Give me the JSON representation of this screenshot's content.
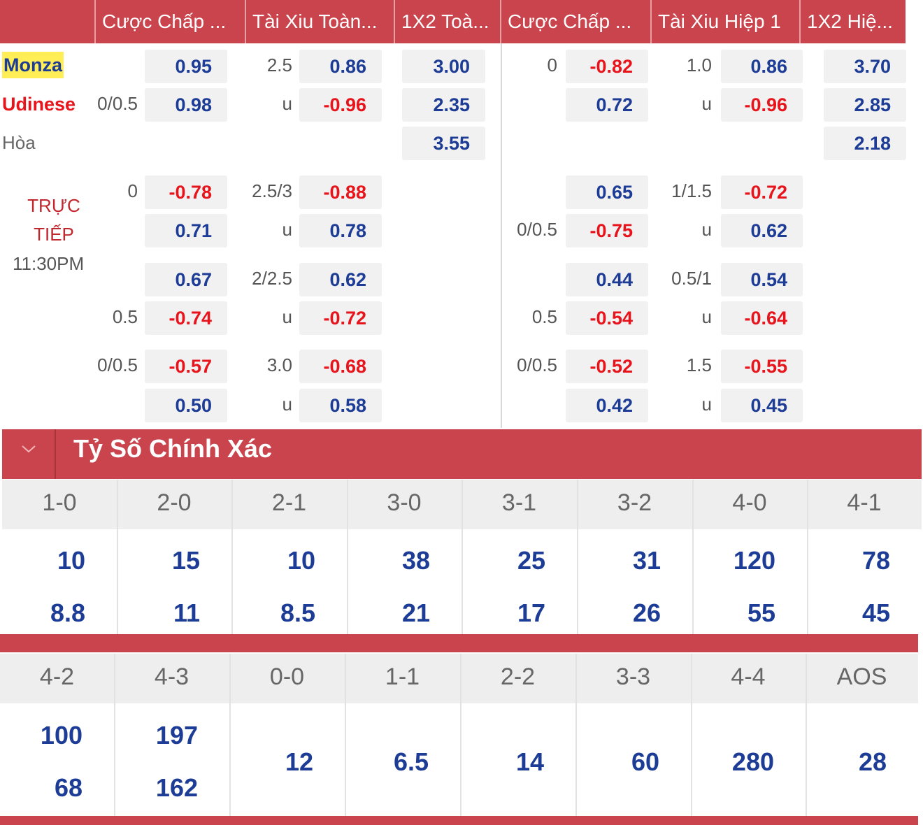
{
  "header": {
    "columns": [
      "Cược Chấp ...",
      "Tài Xiu Toàn...",
      "1X2 Toà...",
      "Cược Chấp ...",
      "Tài Xiu Hiệp 1",
      "1X2 Hiệ..."
    ]
  },
  "match": {
    "home": "Monza",
    "away": "Udinese",
    "draw": "Hòa",
    "status": "TRỰC TIẾP",
    "time": "11:30PM"
  },
  "rows": [
    {
      "fh": "0.95",
      "ou_line": "2.5",
      "ou": "0.86",
      "x12": "3.00",
      "h1_line": "0",
      "h1": "-0.82",
      "h1ou_line": "1.0",
      "h1ou": "0.86",
      "h1x12": "3.70"
    },
    {
      "fh_line": "0/0.5",
      "fh": "0.98",
      "ou_line": "u",
      "ou": "-0.96",
      "x12": "2.35",
      "h1": "0.72",
      "h1ou_line": "u",
      "h1ou": "-0.96",
      "h1x12": "2.85"
    },
    {
      "x12": "3.55",
      "h1x12": "2.18"
    },
    {
      "fh_line": "0",
      "fh": "-0.78",
      "ou_line": "2.5/3",
      "ou": "-0.88",
      "h1": "0.65",
      "h1ou_line": "1/1.5",
      "h1ou": "-0.72"
    },
    {
      "fh": "0.71",
      "ou_line": "u",
      "ou": "0.78",
      "h1_line": "0/0.5",
      "h1": "-0.75",
      "h1ou_line": "u",
      "h1ou": "0.62"
    },
    {
      "fh": "0.67",
      "ou_line": "2/2.5",
      "ou": "0.62",
      "h1": "0.44",
      "h1ou_line": "0.5/1",
      "h1ou": "0.54"
    },
    {
      "fh_line": "0.5",
      "fh": "-0.74",
      "ou_line": "u",
      "ou": "-0.72",
      "h1_line": "0.5",
      "h1": "-0.54",
      "h1ou_line": "u",
      "h1ou": "-0.64"
    },
    {
      "fh_line": "0/0.5",
      "fh": "-0.57",
      "ou_line": "3.0",
      "ou": "-0.68",
      "h1_line": "0/0.5",
      "h1": "-0.52",
      "h1ou_line": "1.5",
      "h1ou": "-0.55"
    },
    {
      "fh": "0.50",
      "ou_line": "u",
      "ou": "0.58",
      "h1": "0.42",
      "h1ou_line": "u",
      "h1ou": "0.45"
    }
  ],
  "section": {
    "title": "Tỷ Số Chính Xác"
  },
  "scores": [
    [
      {
        "score": "1-0",
        "odds": [
          "10",
          "8.8"
        ]
      },
      {
        "score": "2-0",
        "odds": [
          "15",
          "11"
        ]
      },
      {
        "score": "2-1",
        "odds": [
          "10",
          "8.5"
        ]
      },
      {
        "score": "3-0",
        "odds": [
          "38",
          "21"
        ]
      },
      {
        "score": "3-1",
        "odds": [
          "25",
          "17"
        ]
      },
      {
        "score": "3-2",
        "odds": [
          "31",
          "26"
        ]
      },
      {
        "score": "4-0",
        "odds": [
          "120",
          "55"
        ]
      },
      {
        "score": "4-1",
        "odds": [
          "78",
          "45"
        ]
      }
    ],
    [
      {
        "score": "4-2",
        "odds": [
          "100",
          "68"
        ]
      },
      {
        "score": "4-3",
        "odds": [
          "197",
          "162"
        ]
      },
      {
        "score": "0-0",
        "odds": [
          "12"
        ]
      },
      {
        "score": "1-1",
        "odds": [
          "6.5"
        ]
      },
      {
        "score": "2-2",
        "odds": [
          "14"
        ]
      },
      {
        "score": "3-3",
        "odds": [
          "60"
        ]
      },
      {
        "score": "4-4",
        "odds": [
          "280"
        ]
      },
      {
        "score": "AOS",
        "odds": [
          "28"
        ]
      }
    ]
  ]
}
